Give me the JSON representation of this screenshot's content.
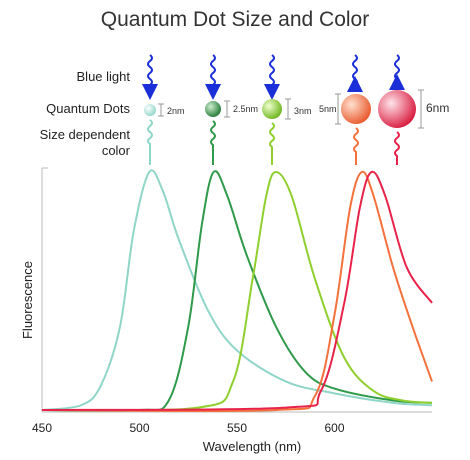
{
  "title": "Quantum Dot Size and Color",
  "labels": {
    "blue_light": "Blue light",
    "quantum_dots": "Quantum Dots",
    "size_dependent_1": "Size dependent",
    "size_dependent_2": "color"
  },
  "dots": [
    {
      "size_label": "2nm",
      "color": "#8fd6c8"
    },
    {
      "size_label": "2.5nm",
      "color": "#2e9a4a"
    },
    {
      "size_label": "3nm",
      "color": "#8fcf2e"
    },
    {
      "size_label": "5nm",
      "color": "#f4713c"
    },
    {
      "size_label": "6nm",
      "color": "#e8234a"
    }
  ],
  "chart_data": {
    "type": "line",
    "xlabel": "Wavelength (nm)",
    "ylabel": "Fluorescence",
    "xlim": [
      450,
      650
    ],
    "ylim": [
      0,
      1
    ],
    "x_ticks": [
      450,
      500,
      550,
      600
    ],
    "grid": false,
    "series": [
      {
        "color": "#8fd6c8",
        "points": [
          [
            450,
            0.0
          ],
          [
            470,
            0.02
          ],
          [
            480,
            0.1
          ],
          [
            490,
            0.35
          ],
          [
            497,
            0.75
          ],
          [
            505,
            1.0
          ],
          [
            512,
            0.92
          ],
          [
            520,
            0.72
          ],
          [
            535,
            0.42
          ],
          [
            550,
            0.25
          ],
          [
            575,
            0.12
          ],
          [
            600,
            0.07
          ],
          [
            630,
            0.03
          ],
          [
            650,
            0.02
          ]
        ]
      },
      {
        "color": "#2e9a4a",
        "points": [
          [
            450,
            0.0
          ],
          [
            500,
            0.0
          ],
          [
            515,
            0.04
          ],
          [
            525,
            0.35
          ],
          [
            532,
            0.78
          ],
          [
            538,
            1.0
          ],
          [
            545,
            0.9
          ],
          [
            555,
            0.65
          ],
          [
            570,
            0.35
          ],
          [
            585,
            0.16
          ],
          [
            600,
            0.09
          ],
          [
            630,
            0.04
          ],
          [
            650,
            0.03
          ]
        ]
      },
      {
        "color": "#8fcf2e",
        "points": [
          [
            450,
            0.0
          ],
          [
            530,
            0.01
          ],
          [
            548,
            0.12
          ],
          [
            558,
            0.55
          ],
          [
            565,
            0.9
          ],
          [
            570,
            1.0
          ],
          [
            578,
            0.9
          ],
          [
            590,
            0.55
          ],
          [
            605,
            0.22
          ],
          [
            620,
            0.08
          ],
          [
            635,
            0.04
          ],
          [
            650,
            0.03
          ]
        ]
      },
      {
        "color": "#f4713c",
        "points": [
          [
            450,
            0.0
          ],
          [
            570,
            0.0
          ],
          [
            590,
            0.06
          ],
          [
            600,
            0.4
          ],
          [
            608,
            0.85
          ],
          [
            614,
            1.0
          ],
          [
            620,
            0.9
          ],
          [
            630,
            0.6
          ],
          [
            640,
            0.35
          ],
          [
            650,
            0.12
          ]
        ]
      },
      {
        "color": "#e8234a",
        "points": [
          [
            450,
            0.0
          ],
          [
            575,
            0.01
          ],
          [
            593,
            0.08
          ],
          [
            605,
            0.45
          ],
          [
            613,
            0.85
          ],
          [
            619,
            1.0
          ],
          [
            626,
            0.9
          ],
          [
            637,
            0.6
          ],
          [
            650,
            0.45
          ]
        ]
      }
    ]
  }
}
